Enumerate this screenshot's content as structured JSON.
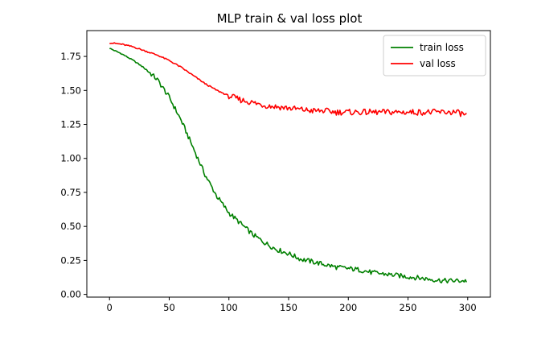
{
  "chart_data": {
    "type": "line",
    "title": "MLP train & val loss plot",
    "xlabel": "",
    "ylabel": "",
    "xlim": [
      -19,
      319
    ],
    "ylim": [
      -0.02,
      1.94
    ],
    "x_ticks": [
      0,
      50,
      100,
      150,
      200,
      250,
      300
    ],
    "x_tick_labels": [
      "0",
      "50",
      "100",
      "150",
      "200",
      "250",
      "300"
    ],
    "y_ticks": [
      0.0,
      0.25,
      0.5,
      0.75,
      1.0,
      1.25,
      1.5,
      1.75
    ],
    "y_tick_labels": [
      "0.00",
      "0.25",
      "0.50",
      "0.75",
      "1.00",
      "1.25",
      "1.50",
      "1.75"
    ],
    "grid": false,
    "legend_position": "upper right",
    "series": [
      {
        "name": "train loss",
        "color": "#008000",
        "x": [
          0,
          10,
          20,
          30,
          40,
          50,
          60,
          70,
          80,
          90,
          100,
          110,
          120,
          130,
          140,
          150,
          160,
          170,
          180,
          190,
          200,
          210,
          220,
          230,
          240,
          250,
          260,
          270,
          280,
          290,
          299
        ],
        "y": [
          1.81,
          1.77,
          1.72,
          1.66,
          1.58,
          1.45,
          1.28,
          1.08,
          0.88,
          0.72,
          0.6,
          0.52,
          0.44,
          0.38,
          0.33,
          0.3,
          0.26,
          0.24,
          0.22,
          0.2,
          0.19,
          0.18,
          0.16,
          0.15,
          0.14,
          0.13,
          0.12,
          0.11,
          0.1,
          0.1,
          0.1
        ]
      },
      {
        "name": "val loss",
        "color": "#ff0000",
        "x": [
          0,
          10,
          20,
          30,
          40,
          50,
          60,
          70,
          80,
          90,
          100,
          110,
          120,
          130,
          140,
          150,
          160,
          170,
          180,
          190,
          200,
          210,
          220,
          230,
          240,
          250,
          260,
          270,
          280,
          290,
          299
        ],
        "y": [
          1.85,
          1.84,
          1.82,
          1.79,
          1.76,
          1.72,
          1.67,
          1.61,
          1.55,
          1.5,
          1.46,
          1.43,
          1.41,
          1.39,
          1.38,
          1.37,
          1.36,
          1.35,
          1.35,
          1.34,
          1.34,
          1.34,
          1.34,
          1.34,
          1.34,
          1.34,
          1.34,
          1.34,
          1.34,
          1.34,
          1.32
        ]
      }
    ]
  }
}
